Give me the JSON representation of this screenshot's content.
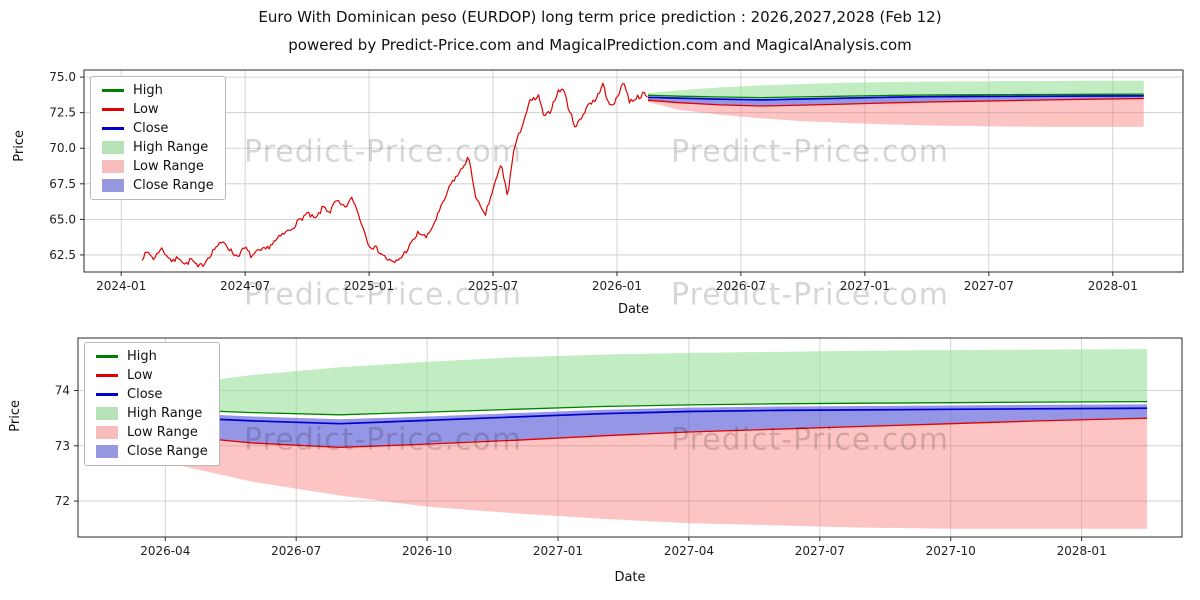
{
  "title": "Euro With Dominican peso (EURDOP) long term price prediction : 2026,2027,2028 (Feb 12)",
  "subtitle": "powered by Predict-Price.com and MagicalPrediction.com and MagicalAnalysis.com",
  "watermark_text": "Predict-Price.com",
  "colors": {
    "high": "#008000",
    "low": "#e00000",
    "close": "#0000cc",
    "high_range": "rgba(143,222,143,0.55)",
    "low_range": "rgba(250,115,115,0.42)",
    "close_range": "rgba(80,80,215,0.60)",
    "legend_high_range": "#b7e2b8",
    "legend_low_range": "#f7bcbc",
    "legend_close_range": "#9898e0",
    "grid": "#c9c9c9",
    "spine": "#2a2a2a",
    "tick_text": "#222222"
  },
  "legend": [
    {
      "label": "High",
      "type": "line",
      "color": "#008000"
    },
    {
      "label": "Low",
      "type": "line",
      "color": "#e00000"
    },
    {
      "label": "Close",
      "type": "line",
      "color": "#0000cc"
    },
    {
      "label": "High Range",
      "type": "patch",
      "color": "#b7e2b8"
    },
    {
      "label": "Low Range",
      "type": "patch",
      "color": "#f7bcbc"
    },
    {
      "label": "Close Range",
      "type": "patch",
      "color": "#9898e0"
    }
  ],
  "chart_data": [
    {
      "type": "line",
      "title": "",
      "xlabel": "Date",
      "ylabel": "Price",
      "x_unit": "months since 2024-01",
      "xlim": [
        -1.8,
        51.4
      ],
      "ylim": [
        61.3,
        75.5
      ],
      "grid": true,
      "legend_position": "upper left",
      "xticks": [
        {
          "v": 0,
          "label": "2024-01"
        },
        {
          "v": 6,
          "label": "2024-07"
        },
        {
          "v": 12,
          "label": "2025-01"
        },
        {
          "v": 18,
          "label": "2025-07"
        },
        {
          "v": 24,
          "label": "2026-01"
        },
        {
          "v": 30,
          "label": "2026-07"
        },
        {
          "v": 36,
          "label": "2027-01"
        },
        {
          "v": 42,
          "label": "2027-07"
        },
        {
          "v": 48,
          "label": "2028-01"
        }
      ],
      "yticks": [
        {
          "v": 62.5,
          "label": "62.5"
        },
        {
          "v": 65.0,
          "label": "65.0"
        },
        {
          "v": 67.5,
          "label": "67.5"
        },
        {
          "v": 70.0,
          "label": "70.0"
        },
        {
          "v": 72.5,
          "label": "72.5"
        },
        {
          "v": 75.0,
          "label": "75.0"
        }
      ],
      "historical": {
        "name": "EURDOP historical price",
        "noise": 0.18,
        "x": [
          1.0,
          1.3,
          1.6,
          1.9,
          2.2,
          2.5,
          2.8,
          3.1,
          3.4,
          3.7,
          4.0,
          4.3,
          4.6,
          5.0,
          5.3,
          5.6,
          6.0,
          6.3,
          6.6,
          7.0,
          7.4,
          7.8,
          8.2,
          8.6,
          9.0,
          9.4,
          9.8,
          10.1,
          10.4,
          10.8,
          11.2,
          11.6,
          12.0,
          12.4,
          12.8,
          13.2,
          13.6,
          14.0,
          14.4,
          14.8,
          15.2,
          15.6,
          16.0,
          16.4,
          16.8,
          17.2,
          17.6,
          18.0,
          18.4,
          18.7,
          19.0,
          19.4,
          19.8,
          20.2,
          20.5,
          20.8,
          21.1,
          21.4,
          21.7,
          22.0,
          22.3,
          22.6,
          23.0,
          23.3,
          23.6,
          24.0,
          24.3,
          24.6,
          25.0,
          25.3,
          25.5
        ],
        "y": [
          62.3,
          62.7,
          62.2,
          63.0,
          62.5,
          62.0,
          62.4,
          61.8,
          62.2,
          61.6,
          61.9,
          62.5,
          63.1,
          63.4,
          62.8,
          62.4,
          63.0,
          62.4,
          62.7,
          62.9,
          63.4,
          63.9,
          64.3,
          64.9,
          65.4,
          65.0,
          65.9,
          65.5,
          66.3,
          65.8,
          66.5,
          64.9,
          63.2,
          62.9,
          62.3,
          61.9,
          62.4,
          63.2,
          64.1,
          63.7,
          64.9,
          66.2,
          67.6,
          68.3,
          69.4,
          66.4,
          65.2,
          67.1,
          68.9,
          66.6,
          69.8,
          71.6,
          73.3,
          73.6,
          72.1,
          72.7,
          73.9,
          74.2,
          72.6,
          71.5,
          72.2,
          73.1,
          73.4,
          74.6,
          73.0,
          73.4,
          74.8,
          73.3,
          73.6,
          73.8,
          73.58
        ]
      },
      "prediction": {
        "x": [
          25.5,
          27,
          29,
          31,
          33,
          35,
          37,
          39,
          41,
          43,
          45,
          47,
          49.5
        ],
        "close": [
          73.58,
          73.52,
          73.45,
          73.4,
          73.46,
          73.52,
          73.58,
          73.62,
          73.64,
          73.65,
          73.66,
          73.67,
          73.68
        ],
        "close_top": [
          73.65,
          73.6,
          73.53,
          73.48,
          73.53,
          73.59,
          73.65,
          73.69,
          73.71,
          73.72,
          73.73,
          73.74,
          73.75
        ],
        "low_line": [
          73.38,
          73.2,
          73.05,
          72.97,
          73.03,
          73.1,
          73.18,
          73.25,
          73.3,
          73.35,
          73.4,
          73.45,
          73.5
        ],
        "high_line": [
          73.72,
          73.66,
          73.6,
          73.56,
          73.61,
          73.66,
          73.71,
          73.74,
          73.76,
          73.77,
          73.78,
          73.79,
          73.8
        ],
        "high_top": [
          73.88,
          74.08,
          74.28,
          74.42,
          74.52,
          74.6,
          74.65,
          74.68,
          74.7,
          74.72,
          74.73,
          74.74,
          74.75
        ],
        "low_bottom": [
          73.25,
          72.7,
          72.35,
          72.1,
          71.9,
          71.78,
          71.68,
          71.6,
          71.56,
          71.52,
          71.5,
          71.5,
          71.5
        ]
      }
    },
    {
      "type": "line",
      "title": "",
      "xlabel": "Date",
      "ylabel": "Price",
      "x_unit": "months since 2024-01",
      "xlim": [
        25.0,
        50.3
      ],
      "ylim": [
        71.35,
        74.95
      ],
      "grid": true,
      "legend_position": "upper left",
      "xticks": [
        {
          "v": 27,
          "label": "2026-04"
        },
        {
          "v": 30,
          "label": "2026-07"
        },
        {
          "v": 33,
          "label": "2026-10"
        },
        {
          "v": 36,
          "label": "2027-01"
        },
        {
          "v": 39,
          "label": "2027-04"
        },
        {
          "v": 42,
          "label": "2027-07"
        },
        {
          "v": 45,
          "label": "2027-10"
        },
        {
          "v": 48,
          "label": "2028-01"
        }
      ],
      "yticks": [
        {
          "v": 72,
          "label": "72"
        },
        {
          "v": 73,
          "label": "73"
        },
        {
          "v": 74,
          "label": "74"
        }
      ],
      "prediction": {
        "x": [
          25.5,
          27,
          29,
          31,
          33,
          35,
          37,
          39,
          41,
          43,
          45,
          47,
          49.5
        ],
        "close": [
          73.58,
          73.52,
          73.45,
          73.4,
          73.46,
          73.52,
          73.58,
          73.62,
          73.64,
          73.65,
          73.66,
          73.67,
          73.68
        ],
        "close_top": [
          73.65,
          73.6,
          73.53,
          73.48,
          73.53,
          73.59,
          73.65,
          73.69,
          73.71,
          73.72,
          73.73,
          73.74,
          73.75
        ],
        "low_line": [
          73.38,
          73.2,
          73.05,
          72.97,
          73.03,
          73.1,
          73.18,
          73.25,
          73.3,
          73.35,
          73.4,
          73.45,
          73.5
        ],
        "high_line": [
          73.72,
          73.66,
          73.6,
          73.56,
          73.61,
          73.66,
          73.71,
          73.74,
          73.76,
          73.77,
          73.78,
          73.79,
          73.8
        ],
        "high_top": [
          73.88,
          74.08,
          74.28,
          74.42,
          74.52,
          74.6,
          74.65,
          74.68,
          74.7,
          74.72,
          74.73,
          74.74,
          74.75
        ],
        "low_bottom": [
          73.25,
          72.7,
          72.35,
          72.1,
          71.9,
          71.78,
          71.68,
          71.6,
          71.56,
          71.52,
          71.5,
          71.5,
          71.5
        ]
      }
    }
  ]
}
